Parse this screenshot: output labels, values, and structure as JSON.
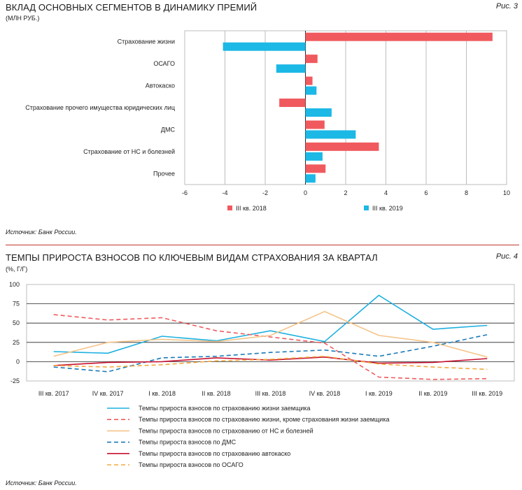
{
  "panel1": {
    "title": "ВКЛАД ОСНОВНЫХ СЕГМЕНТОВ В ДИНАМИКУ ПРЕМИЙ",
    "subtitle": "(МЛН РУБ.)",
    "fig_label": "Рис. 3",
    "source": "Источник: Банк России."
  },
  "panel2": {
    "title": "ТЕМПЫ ПРИРОСТА ВЗНОСОВ ПО КЛЮЧЕВЫМ ВИДАМ СТРАХОВАНИЯ ЗА КВАРТАЛ",
    "subtitle": "(%, Г/Г)",
    "fig_label": "Рис. 4",
    "source": "Источник: Банк России."
  },
  "chart_data": [
    {
      "type": "bar",
      "orientation": "horizontal",
      "categories": [
        "Страхование жизни",
        "ОСАГО",
        "Автокаско",
        "Страхование прочего имущества юридических лиц",
        "ДМС",
        "Страхование от НС и болезней",
        "Прочее"
      ],
      "series": [
        {
          "name": "III кв. 2018",
          "color": "#f05a5e",
          "values": [
            9.3,
            0.6,
            0.35,
            -1.3,
            0.95,
            3.65,
            1.0
          ]
        },
        {
          "name": "III кв. 2019",
          "color": "#1cb8e6",
          "values": [
            -4.1,
            -1.45,
            0.55,
            1.3,
            2.5,
            0.85,
            0.5
          ]
        }
      ],
      "xlim": [
        -6,
        10
      ],
      "xticks": [
        -6,
        -4,
        -2,
        0,
        2,
        4,
        6,
        8,
        10
      ],
      "legend_position": "bottom"
    },
    {
      "type": "line",
      "categories": [
        "III кв. 2017",
        "IV кв. 2017",
        "I кв. 2018",
        "II кв. 2018",
        "III кв. 2018",
        "IV кв. 2018",
        "I кв. 2019",
        "II кв. 2019",
        "III кв. 2019"
      ],
      "series": [
        {
          "name": "Темпы прироста взносов по страхованию жизни заемщика",
          "color": "#1cb0e0",
          "dash": "solid",
          "values": [
            13,
            11,
            33,
            27,
            40,
            26,
            86,
            42,
            47
          ]
        },
        {
          "name": "Темпы прироста взносов по страхованию жизни, кроме страхования жизни заемщика",
          "color": "#f05a5e",
          "dash": "dashed",
          "values": [
            61,
            54,
            57,
            40,
            32,
            24,
            -20,
            -23,
            -22
          ]
        },
        {
          "name": "Темпы прироста взносов по страхованию от НС и болезней",
          "color": "#f5c48a",
          "dash": "solid",
          "values": [
            7,
            25,
            29,
            26,
            34,
            65,
            34,
            25,
            6
          ]
        },
        {
          "name": "Темпы прироста взносов по ДМС",
          "color": "#1a7ab8",
          "dash": "dashed",
          "values": [
            -7,
            -13,
            5,
            7,
            12,
            15,
            7,
            20,
            35
          ]
        },
        {
          "name": "Темпы прироста взносов по страхованию автокаско",
          "color": "#c8102e",
          "dash": "solid",
          "values": [
            -5,
            -1,
            0,
            5,
            2,
            6,
            -2,
            -1,
            4
          ]
        },
        {
          "name": "Темпы прироста взносов по ОСАГО",
          "color": "#f3a93c",
          "dash": "dashed",
          "values": [
            -5,
            -7,
            -4,
            1,
            3,
            7,
            -3,
            -7,
            -10
          ]
        }
      ],
      "ylim": [
        -25,
        100
      ],
      "yticks": [
        -25,
        0,
        25,
        50,
        75,
        100
      ],
      "grid": "horizontal",
      "legend_position": "bottom"
    }
  ]
}
